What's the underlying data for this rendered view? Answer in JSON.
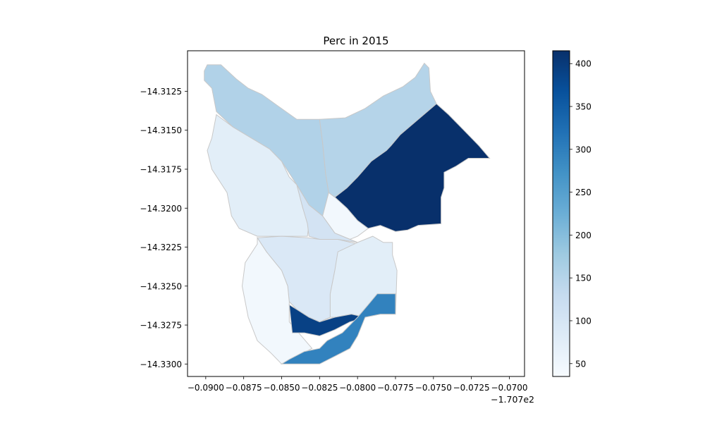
{
  "chart_data": {
    "type": "choropleth",
    "title": "Perc in 2015",
    "xlabel": "",
    "ylabel": "",
    "x_offset_label": "−1.707e2",
    "xlim": [
      -0.0912,
      -0.069
    ],
    "ylim": [
      -14.3308,
      -14.3099
    ],
    "x_ticks": [
      {
        "value": -0.09,
        "label": "−0.0900"
      },
      {
        "value": -0.0875,
        "label": "−0.0875"
      },
      {
        "value": -0.085,
        "label": "−0.0850"
      },
      {
        "value": -0.0825,
        "label": "−0.0825"
      },
      {
        "value": -0.08,
        "label": "−0.0800"
      },
      {
        "value": -0.0775,
        "label": "−0.0775"
      },
      {
        "value": -0.075,
        "label": "−0.0750"
      },
      {
        "value": -0.0725,
        "label": "−0.0725"
      },
      {
        "value": -0.07,
        "label": "−0.0700"
      }
    ],
    "y_ticks": [
      {
        "value": -14.3125,
        "label": "−14.3125"
      },
      {
        "value": -14.315,
        "label": "−14.3150"
      },
      {
        "value": -14.3175,
        "label": "−14.3175"
      },
      {
        "value": -14.32,
        "label": "−14.3200"
      },
      {
        "value": -14.3225,
        "label": "−14.3225"
      },
      {
        "value": -14.325,
        "label": "−14.3250"
      },
      {
        "value": -14.3275,
        "label": "−14.3275"
      },
      {
        "value": -14.33,
        "label": "−14.3300"
      }
    ],
    "colorbar": {
      "cmap": "Blues",
      "vmin": 35,
      "vmax": 415,
      "ticks": [
        {
          "value": 50,
          "label": "50"
        },
        {
          "value": 100,
          "label": "100"
        },
        {
          "value": 150,
          "label": "150"
        },
        {
          "value": 200,
          "label": "200"
        },
        {
          "value": 250,
          "label": "250"
        },
        {
          "value": 300,
          "label": "300"
        },
        {
          "value": 350,
          "label": "350"
        },
        {
          "value": 400,
          "label": "400"
        }
      ]
    },
    "regions": [
      {
        "value": 155,
        "polygon": [
          [
            -0.0901,
            -14.3112
          ],
          [
            -0.0899,
            -14.3108
          ],
          [
            -0.089,
            -14.3108
          ],
          [
            -0.088,
            -14.3117
          ],
          [
            -0.0872,
            -14.3123
          ],
          [
            -0.0863,
            -14.3127
          ],
          [
            -0.0853,
            -14.3134
          ],
          [
            -0.084,
            -14.3143
          ],
          [
            -0.0825,
            -14.3143
          ],
          [
            -0.0823,
            -14.3158
          ],
          [
            -0.0821,
            -14.3178
          ],
          [
            -0.0819,
            -14.319
          ],
          [
            -0.0823,
            -14.3205
          ],
          [
            -0.0832,
            -14.3198
          ],
          [
            -0.084,
            -14.3185
          ],
          [
            -0.085,
            -14.317
          ],
          [
            -0.0858,
            -14.3162
          ],
          [
            -0.087,
            -14.3155
          ],
          [
            -0.0882,
            -14.3148
          ],
          [
            -0.0893,
            -14.3138
          ],
          [
            -0.0896,
            -14.3123
          ],
          [
            -0.0901,
            -14.3118
          ]
        ]
      },
      {
        "value": 150,
        "polygon": [
          [
            -0.0825,
            -14.3143
          ],
          [
            -0.0808,
            -14.3142
          ],
          [
            -0.0795,
            -14.3136
          ],
          [
            -0.0783,
            -14.3128
          ],
          [
            -0.077,
            -14.3122
          ],
          [
            -0.0762,
            -14.3116
          ],
          [
            -0.0756,
            -14.3107
          ],
          [
            -0.0753,
            -14.311
          ],
          [
            -0.0752,
            -14.3125
          ],
          [
            -0.0748,
            -14.3133
          ],
          [
            -0.076,
            -14.3143
          ],
          [
            -0.0772,
            -14.3153
          ],
          [
            -0.0778,
            -14.316
          ],
          [
            -0.0781,
            -14.3175
          ],
          [
            -0.0792,
            -14.3185
          ],
          [
            -0.08,
            -14.3194
          ],
          [
            -0.0807,
            -14.3187
          ],
          [
            -0.0815,
            -14.3193
          ],
          [
            -0.0819,
            -14.319
          ],
          [
            -0.0821,
            -14.3178
          ],
          [
            -0.0823,
            -14.3158
          ]
        ]
      },
      {
        "value": 415,
        "polygon": [
          [
            -0.0748,
            -14.3133
          ],
          [
            -0.074,
            -14.314
          ],
          [
            -0.073,
            -14.315
          ],
          [
            -0.072,
            -14.316
          ],
          [
            -0.0713,
            -14.3168
          ],
          [
            -0.0727,
            -14.3168
          ],
          [
            -0.0735,
            -14.3173
          ],
          [
            -0.0743,
            -14.3177
          ],
          [
            -0.0743,
            -14.3187
          ],
          [
            -0.0745,
            -14.3193
          ],
          [
            -0.0745,
            -14.321
          ],
          [
            -0.076,
            -14.3211
          ],
          [
            -0.0767,
            -14.3214
          ],
          [
            -0.0775,
            -14.3215
          ],
          [
            -0.0785,
            -14.3211
          ],
          [
            -0.0793,
            -14.3213
          ],
          [
            -0.08,
            -14.3208
          ],
          [
            -0.0807,
            -14.32
          ],
          [
            -0.0815,
            -14.3193
          ],
          [
            -0.0807,
            -14.3187
          ],
          [
            -0.08,
            -14.318
          ],
          [
            -0.0791,
            -14.317
          ],
          [
            -0.0781,
            -14.3163
          ],
          [
            -0.0778,
            -14.316
          ],
          [
            -0.0772,
            -14.3153
          ],
          [
            -0.076,
            -14.3143
          ]
        ]
      },
      {
        "value": 45,
        "polygon": [
          [
            -0.0819,
            -14.319
          ],
          [
            -0.0815,
            -14.3193
          ],
          [
            -0.0807,
            -14.32
          ],
          [
            -0.08,
            -14.3208
          ],
          [
            -0.0793,
            -14.3213
          ],
          [
            -0.08,
            -14.3218
          ],
          [
            -0.0805,
            -14.322
          ],
          [
            -0.0815,
            -14.3216
          ],
          [
            -0.0823,
            -14.3205
          ]
        ]
      },
      {
        "value": 75,
        "polygon": [
          [
            -0.0893,
            -14.314
          ],
          [
            -0.0882,
            -14.3148
          ],
          [
            -0.087,
            -14.3155
          ],
          [
            -0.0858,
            -14.3162
          ],
          [
            -0.085,
            -14.317
          ],
          [
            -0.0845,
            -14.318
          ],
          [
            -0.084,
            -14.3185
          ],
          [
            -0.0836,
            -14.32
          ],
          [
            -0.0832,
            -14.321
          ],
          [
            -0.0833,
            -14.3218
          ],
          [
            -0.085,
            -14.3218
          ],
          [
            -0.0866,
            -14.3218
          ],
          [
            -0.0878,
            -14.3213
          ],
          [
            -0.0883,
            -14.3205
          ],
          [
            -0.0886,
            -14.319
          ],
          [
            -0.0896,
            -14.3175
          ],
          [
            -0.0899,
            -14.3163
          ],
          [
            -0.0896,
            -14.3155
          ]
        ]
      },
      {
        "value": 105,
        "polygon": [
          [
            -0.084,
            -14.3185
          ],
          [
            -0.0832,
            -14.3198
          ],
          [
            -0.0823,
            -14.3205
          ],
          [
            -0.0815,
            -14.3216
          ],
          [
            -0.0805,
            -14.322
          ],
          [
            -0.08,
            -14.3222
          ],
          [
            -0.0813,
            -14.322
          ],
          [
            -0.0825,
            -14.322
          ],
          [
            -0.0832,
            -14.3218
          ],
          [
            -0.0833,
            -14.321
          ],
          [
            -0.0836,
            -14.32
          ]
        ]
      },
      {
        "value": 90,
        "polygon": [
          [
            -0.0866,
            -14.3219
          ],
          [
            -0.085,
            -14.3218
          ],
          [
            -0.0833,
            -14.3219
          ],
          [
            -0.0825,
            -14.322
          ],
          [
            -0.0813,
            -14.322
          ],
          [
            -0.08,
            -14.3223
          ],
          [
            -0.0804,
            -14.3226
          ],
          [
            -0.081,
            -14.3232
          ],
          [
            -0.0815,
            -14.324
          ],
          [
            -0.0818,
            -14.3255
          ],
          [
            -0.0818,
            -14.327
          ],
          [
            -0.0825,
            -14.3273
          ],
          [
            -0.0832,
            -14.327
          ],
          [
            -0.084,
            -14.3265
          ],
          [
            -0.0845,
            -14.326
          ],
          [
            -0.0846,
            -14.325
          ],
          [
            -0.085,
            -14.324
          ],
          [
            -0.086,
            -14.3228
          ]
        ]
      },
      {
        "value": 45,
        "polygon": [
          [
            -0.0866,
            -14.3219
          ],
          [
            -0.086,
            -14.3228
          ],
          [
            -0.085,
            -14.324
          ],
          [
            -0.0846,
            -14.325
          ],
          [
            -0.0845,
            -14.326
          ],
          [
            -0.0845,
            -14.3273
          ],
          [
            -0.083,
            -14.329
          ],
          [
            -0.084,
            -14.3295
          ],
          [
            -0.085,
            -14.33
          ],
          [
            -0.0857,
            -14.3293
          ],
          [
            -0.0866,
            -14.3285
          ],
          [
            -0.0872,
            -14.327
          ],
          [
            -0.0876,
            -14.325
          ],
          [
            -0.0874,
            -14.3235
          ],
          [
            -0.0866,
            -14.3223
          ]
        ]
      },
      {
        "value": 75,
        "polygon": [
          [
            -0.0818,
            -14.3255
          ],
          [
            -0.0818,
            -14.327
          ],
          [
            -0.0815,
            -14.327
          ],
          [
            -0.0804,
            -14.3268
          ],
          [
            -0.0795,
            -14.327
          ],
          [
            -0.0785,
            -14.3268
          ],
          [
            -0.0775,
            -14.3268
          ],
          [
            -0.0774,
            -14.324
          ],
          [
            -0.0777,
            -14.323
          ],
          [
            -0.0777,
            -14.3222
          ],
          [
            -0.0783,
            -14.3222
          ],
          [
            -0.079,
            -14.3218
          ],
          [
            -0.08,
            -14.3222
          ],
          [
            -0.0813,
            -14.3228
          ],
          [
            -0.0815,
            -14.324
          ]
        ]
      },
      {
        "value": 390,
        "polygon": [
          [
            -0.0845,
            -14.3262
          ],
          [
            -0.084,
            -14.3265
          ],
          [
            -0.0832,
            -14.327
          ],
          [
            -0.0825,
            -14.3273
          ],
          [
            -0.0815,
            -14.327
          ],
          [
            -0.0804,
            -14.3268
          ],
          [
            -0.0795,
            -14.327
          ],
          [
            -0.0805,
            -14.3273
          ],
          [
            -0.0815,
            -14.3278
          ],
          [
            -0.0825,
            -14.3282
          ],
          [
            -0.0835,
            -14.328
          ],
          [
            -0.0843,
            -14.328
          ]
        ]
      },
      {
        "value": 295,
        "polygon": [
          [
            -0.0795,
            -14.327
          ],
          [
            -0.0785,
            -14.3268
          ],
          [
            -0.0775,
            -14.3268
          ],
          [
            -0.0775,
            -14.3255
          ],
          [
            -0.0787,
            -14.3255
          ],
          [
            -0.0793,
            -14.3262
          ],
          [
            -0.08,
            -14.327
          ],
          [
            -0.081,
            -14.328
          ],
          [
            -0.082,
            -14.3285
          ],
          [
            -0.0825,
            -14.329
          ],
          [
            -0.0835,
            -14.3292
          ],
          [
            -0.0845,
            -14.3297
          ],
          [
            -0.085,
            -14.33
          ],
          [
            -0.0825,
            -14.33
          ],
          [
            -0.0815,
            -14.3295
          ],
          [
            -0.0805,
            -14.329
          ],
          [
            -0.08,
            -14.3282
          ]
        ]
      }
    ]
  }
}
